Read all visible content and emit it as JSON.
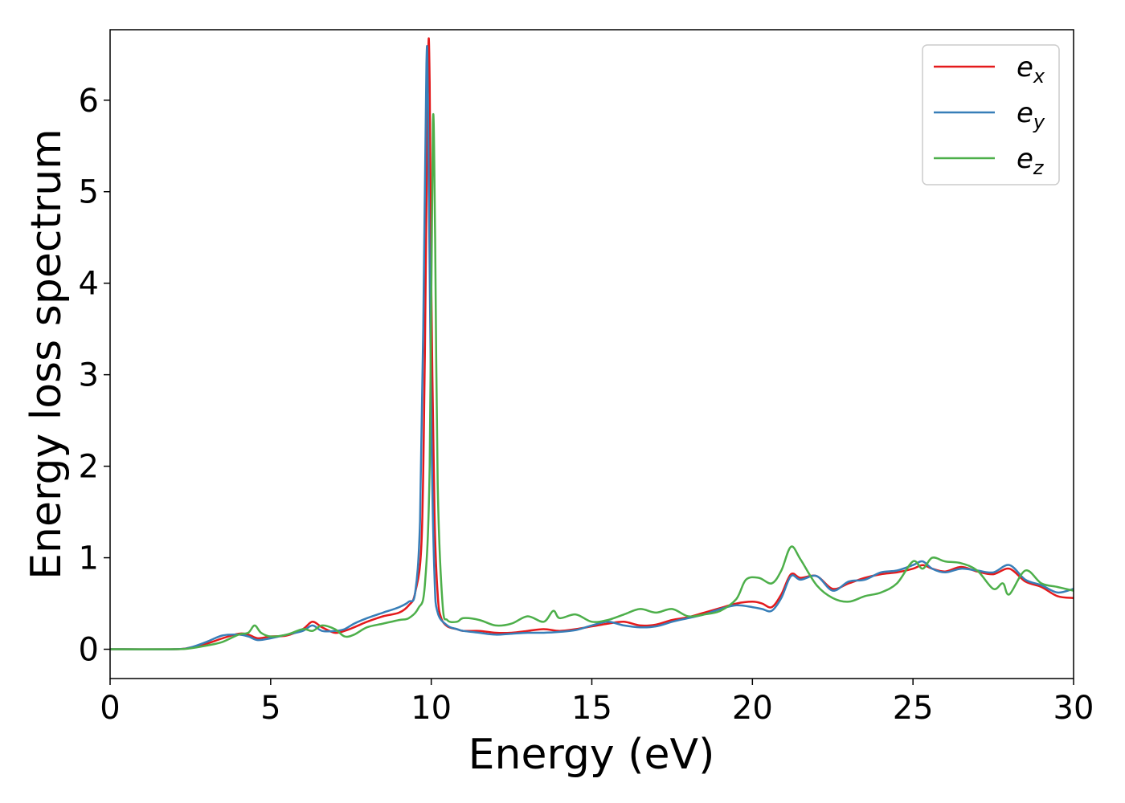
{
  "chart_data": {
    "type": "line",
    "title": "",
    "xlabel": "Energy (eV)",
    "ylabel": "Energy loss spectrum",
    "xlim": [
      0,
      30
    ],
    "ylim": [
      -0.32,
      6.77
    ],
    "xticks": [
      0,
      5,
      10,
      15,
      20,
      25,
      30
    ],
    "yticks": [
      0,
      1,
      2,
      3,
      4,
      5,
      6
    ],
    "grid": false,
    "legend_position": "top-right",
    "series": [
      {
        "name": "e_x",
        "label_main": "e",
        "label_sub": "x",
        "color": "#e41a1c",
        "x": [
          0,
          2,
          2.5,
          3.0,
          3.5,
          4.0,
          4.3,
          4.6,
          5.0,
          5.5,
          6.0,
          6.3,
          6.6,
          7.0,
          7.3,
          7.6,
          8.0,
          8.5,
          9.0,
          9.3,
          9.5,
          9.7,
          9.8,
          9.9,
          9.95,
          10.0,
          10.1,
          10.2,
          10.3,
          10.5,
          10.8,
          11.0,
          11.5,
          12.0,
          12.5,
          13.0,
          13.5,
          14.0,
          14.5,
          15.0,
          15.5,
          16.0,
          16.5,
          17.0,
          17.5,
          18.0,
          18.5,
          19.0,
          19.5,
          20.0,
          20.3,
          20.6,
          20.9,
          21.2,
          21.5,
          22.0,
          22.5,
          23.0,
          23.5,
          24.0,
          24.5,
          25.0,
          25.3,
          25.6,
          26.0,
          26.5,
          27.0,
          27.5,
          28.0,
          28.5,
          29.0,
          29.5,
          30.0
        ],
        "y": [
          0.0,
          0.0,
          0.02,
          0.06,
          0.12,
          0.17,
          0.16,
          0.12,
          0.14,
          0.15,
          0.22,
          0.3,
          0.24,
          0.18,
          0.2,
          0.24,
          0.3,
          0.36,
          0.4,
          0.48,
          0.62,
          1.2,
          3.2,
          6.42,
          6.2,
          4.0,
          1.5,
          0.6,
          0.35,
          0.25,
          0.22,
          0.2,
          0.2,
          0.18,
          0.18,
          0.2,
          0.22,
          0.2,
          0.22,
          0.25,
          0.28,
          0.3,
          0.26,
          0.27,
          0.32,
          0.35,
          0.4,
          0.45,
          0.5,
          0.52,
          0.5,
          0.46,
          0.6,
          0.82,
          0.78,
          0.8,
          0.66,
          0.72,
          0.78,
          0.82,
          0.84,
          0.88,
          0.92,
          0.88,
          0.85,
          0.9,
          0.85,
          0.82,
          0.88,
          0.74,
          0.68,
          0.58,
          0.56
        ]
      },
      {
        "name": "e_y",
        "label_main": "e",
        "label_sub": "y",
        "color": "#377eb8",
        "x": [
          0,
          2,
          2.5,
          3.0,
          3.5,
          4.0,
          4.3,
          4.6,
          5.0,
          5.5,
          6.0,
          6.3,
          6.6,
          7.0,
          7.3,
          7.6,
          8.0,
          8.5,
          9.0,
          9.3,
          9.5,
          9.65,
          9.75,
          9.85,
          9.9,
          10.0,
          10.1,
          10.2,
          10.5,
          10.8,
          11.0,
          11.5,
          12.0,
          12.5,
          13.0,
          13.5,
          14.0,
          14.5,
          15.0,
          15.5,
          16.0,
          16.5,
          17.0,
          17.5,
          18.0,
          18.5,
          19.0,
          19.5,
          20.0,
          20.3,
          20.6,
          20.9,
          21.2,
          21.5,
          22.0,
          22.5,
          23.0,
          23.5,
          24.0,
          24.5,
          25.0,
          25.3,
          25.6,
          26.0,
          26.5,
          27.0,
          27.5,
          28.0,
          28.5,
          29.0,
          29.5,
          30.0
        ],
        "y": [
          0.0,
          0.0,
          0.02,
          0.08,
          0.15,
          0.16,
          0.14,
          0.1,
          0.12,
          0.16,
          0.2,
          0.26,
          0.2,
          0.2,
          0.22,
          0.28,
          0.34,
          0.4,
          0.46,
          0.52,
          0.62,
          1.4,
          3.5,
          6.4,
          5.9,
          2.5,
          0.8,
          0.4,
          0.26,
          0.22,
          0.2,
          0.18,
          0.16,
          0.17,
          0.18,
          0.18,
          0.19,
          0.21,
          0.26,
          0.3,
          0.26,
          0.24,
          0.25,
          0.3,
          0.34,
          0.38,
          0.44,
          0.48,
          0.46,
          0.44,
          0.42,
          0.56,
          0.8,
          0.76,
          0.8,
          0.64,
          0.74,
          0.76,
          0.84,
          0.86,
          0.92,
          0.96,
          0.88,
          0.84,
          0.88,
          0.86,
          0.84,
          0.92,
          0.76,
          0.7,
          0.62,
          0.66
        ]
      },
      {
        "name": "e_z",
        "label_main": "e",
        "label_sub": "z",
        "color": "#4daf4a",
        "x": [
          0,
          2,
          2.5,
          3.0,
          3.5,
          4.0,
          4.3,
          4.5,
          4.7,
          5.0,
          5.5,
          6.0,
          6.3,
          6.6,
          7.0,
          7.3,
          7.6,
          8.0,
          8.5,
          9.0,
          9.3,
          9.6,
          9.8,
          9.95,
          10.05,
          10.12,
          10.2,
          10.35,
          10.5,
          10.8,
          11.0,
          11.5,
          12.0,
          12.5,
          13.0,
          13.5,
          13.8,
          14.0,
          14.5,
          15.0,
          15.5,
          16.0,
          16.5,
          17.0,
          17.5,
          18.0,
          18.5,
          19.0,
          19.5,
          19.8,
          20.2,
          20.6,
          20.9,
          21.2,
          21.5,
          22.0,
          22.5,
          23.0,
          23.5,
          24.0,
          24.5,
          25.0,
          25.3,
          25.6,
          26.0,
          26.5,
          27.0,
          27.5,
          27.8,
          28.0,
          28.5,
          29.0,
          29.5,
          30.0
        ],
        "y": [
          0.0,
          0.0,
          0.01,
          0.04,
          0.08,
          0.16,
          0.18,
          0.26,
          0.18,
          0.14,
          0.16,
          0.22,
          0.2,
          0.26,
          0.22,
          0.14,
          0.16,
          0.24,
          0.28,
          0.32,
          0.34,
          0.45,
          0.7,
          2.0,
          5.75,
          4.5,
          1.8,
          0.5,
          0.32,
          0.3,
          0.34,
          0.32,
          0.26,
          0.28,
          0.36,
          0.3,
          0.42,
          0.34,
          0.38,
          0.3,
          0.32,
          0.38,
          0.44,
          0.4,
          0.44,
          0.36,
          0.38,
          0.42,
          0.55,
          0.76,
          0.78,
          0.72,
          0.86,
          1.12,
          0.98,
          0.7,
          0.56,
          0.52,
          0.58,
          0.62,
          0.72,
          0.96,
          0.88,
          1.0,
          0.96,
          0.94,
          0.86,
          0.66,
          0.72,
          0.6,
          0.86,
          0.72,
          0.68,
          0.64
        ]
      }
    ]
  }
}
